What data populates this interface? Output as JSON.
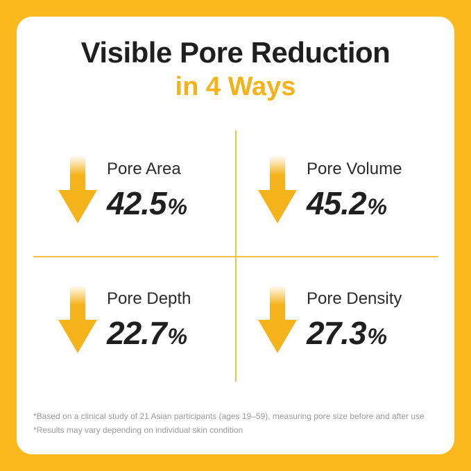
{
  "header": {
    "title_line1": "Visible Pore Reduction",
    "title_line2": "in 4 Ways",
    "accent_color": "#f5b31b",
    "background_color": "#fbb81c"
  },
  "stats": [
    {
      "label": "Pore Area",
      "value": "42.5",
      "unit": "%",
      "icon": "down-arrow-icon"
    },
    {
      "label": "Pore Volume",
      "value": "45.2",
      "unit": "%",
      "icon": "down-arrow-icon"
    },
    {
      "label": "Pore Depth",
      "value": "22.7",
      "unit": "%",
      "icon": "down-arrow-icon"
    },
    {
      "label": "Pore Density",
      "value": "27.3",
      "unit": "%",
      "icon": "down-arrow-icon"
    }
  ],
  "footnotes": [
    "*Based on a clinical study of 21 Asian participants (ages 19–59), measuring pore size before and after use",
    "*Results may vary depending on individual skin condition"
  ]
}
